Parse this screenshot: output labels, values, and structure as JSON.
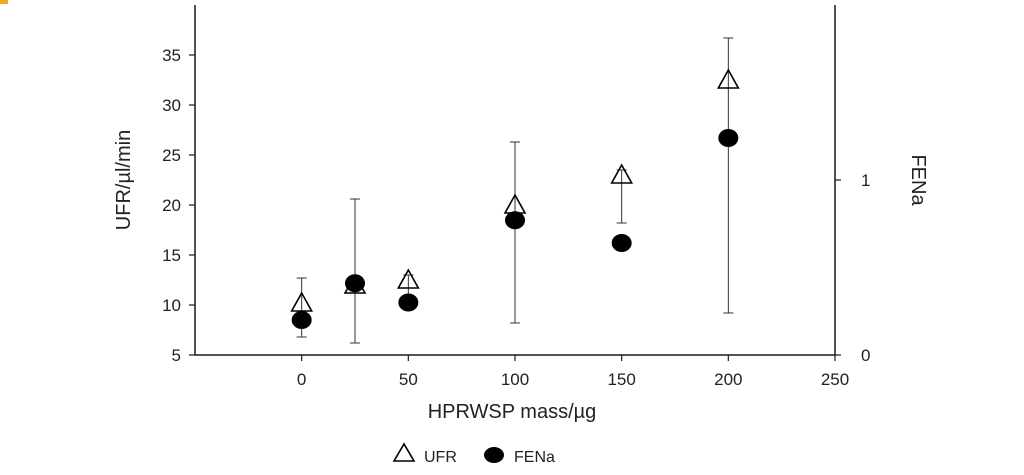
{
  "chart_data": {
    "type": "scatter",
    "title": "",
    "xlabel": "HPRWSP mass/µg",
    "ylabel": "UFR/µl/min",
    "y2label": "FENa",
    "xlim": [
      -50,
      250
    ],
    "ylim": [
      5,
      40
    ],
    "y2lim": [
      0,
      2
    ],
    "xticks": [
      0,
      50,
      100,
      150,
      200,
      250
    ],
    "yticks": [
      5,
      10,
      15,
      20,
      25,
      30,
      35
    ],
    "y2ticks": [
      0,
      1
    ],
    "grid": false,
    "legend_position": "bottom-center",
    "series": [
      {
        "name": "UFR",
        "marker": "triangle-open",
        "axis": "left",
        "x": [
          0,
          25,
          50,
          100,
          150,
          200
        ],
        "y": [
          10.2,
          12.0,
          12.5,
          20.0,
          23.0,
          32.5
        ],
        "yerr_low": [
          6.8,
          6.2,
          11.0,
          8.2,
          18.2,
          9.2
        ],
        "yerr_high": [
          12.7,
          20.6,
          13.0,
          26.3,
          23.5,
          36.7
        ]
      },
      {
        "name": "FENa",
        "marker": "circle-filled",
        "axis": "right",
        "x": [
          0,
          25,
          50,
          100,
          150,
          200
        ],
        "y": [
          0.2,
          0.41,
          0.3,
          0.77,
          0.64,
          1.24
        ]
      }
    ]
  },
  "colors": {
    "axis": "#1a1a1a",
    "marker": "#000000",
    "accent": "#f5a623"
  }
}
